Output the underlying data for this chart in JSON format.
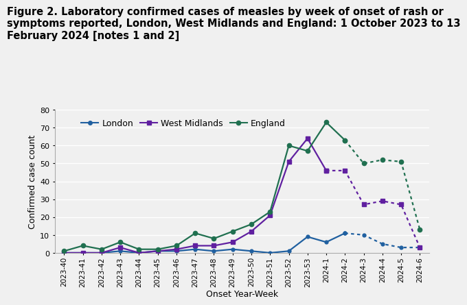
{
  "title_line1": "Figure 2. Laboratory confirmed cases of measles by week of onset of rash or",
  "title_line2": "symptoms reported, London, West Midlands and England: 1 October 2023 to 13",
  "title_line3": "February 2024 [notes 1 and 2]",
  "xlabel": "Onset Year-Week",
  "ylabel": "Confirmed case count",
  "x_labels": [
    "2023-40",
    "2023-41",
    "2023-42",
    "2023-43",
    "2023-44",
    "2023-45",
    "2023-46",
    "2023-47",
    "2023-48",
    "2023-49",
    "2023-50",
    "2023-51",
    "2023-52",
    "2023-53",
    "2024-1",
    "2024-2",
    "2024-3",
    "2024-4",
    "2024-5",
    "2024-6"
  ],
  "london_solid": [
    0,
    0,
    0,
    1,
    0,
    1,
    1,
    2,
    1,
    2,
    1,
    0,
    1,
    9,
    6,
    11,
    null,
    null,
    null,
    null
  ],
  "london_dotted": [
    null,
    null,
    null,
    null,
    null,
    null,
    null,
    null,
    null,
    null,
    null,
    null,
    null,
    null,
    null,
    11,
    10,
    5,
    3,
    3
  ],
  "wm_solid": [
    0,
    0,
    0,
    3,
    0,
    1,
    2,
    4,
    4,
    6,
    12,
    21,
    51,
    64,
    46,
    null,
    null,
    null,
    null,
    null
  ],
  "wm_dotted": [
    null,
    null,
    null,
    null,
    null,
    null,
    null,
    null,
    null,
    null,
    null,
    null,
    null,
    null,
    46,
    46,
    27,
    29,
    27,
    3
  ],
  "england_solid": [
    1,
    4,
    2,
    6,
    2,
    2,
    4,
    11,
    8,
    12,
    16,
    23,
    60,
    57,
    73,
    63,
    null,
    null,
    null,
    null
  ],
  "england_dotted": [
    null,
    null,
    null,
    null,
    null,
    null,
    null,
    null,
    null,
    null,
    null,
    null,
    null,
    null,
    null,
    63,
    50,
    52,
    51,
    13
  ],
  "london_color": "#2060a0",
  "wm_color": "#6020a0",
  "england_color": "#207050",
  "ylim": [
    0,
    80
  ],
  "yticks": [
    0,
    10,
    20,
    30,
    40,
    50,
    60,
    70,
    80
  ],
  "bg_color": "#f0f0f0",
  "grid_color": "white",
  "title_fontsize": 10.5,
  "axis_fontsize": 9,
  "tick_fontsize": 8,
  "legend_fontsize": 9
}
